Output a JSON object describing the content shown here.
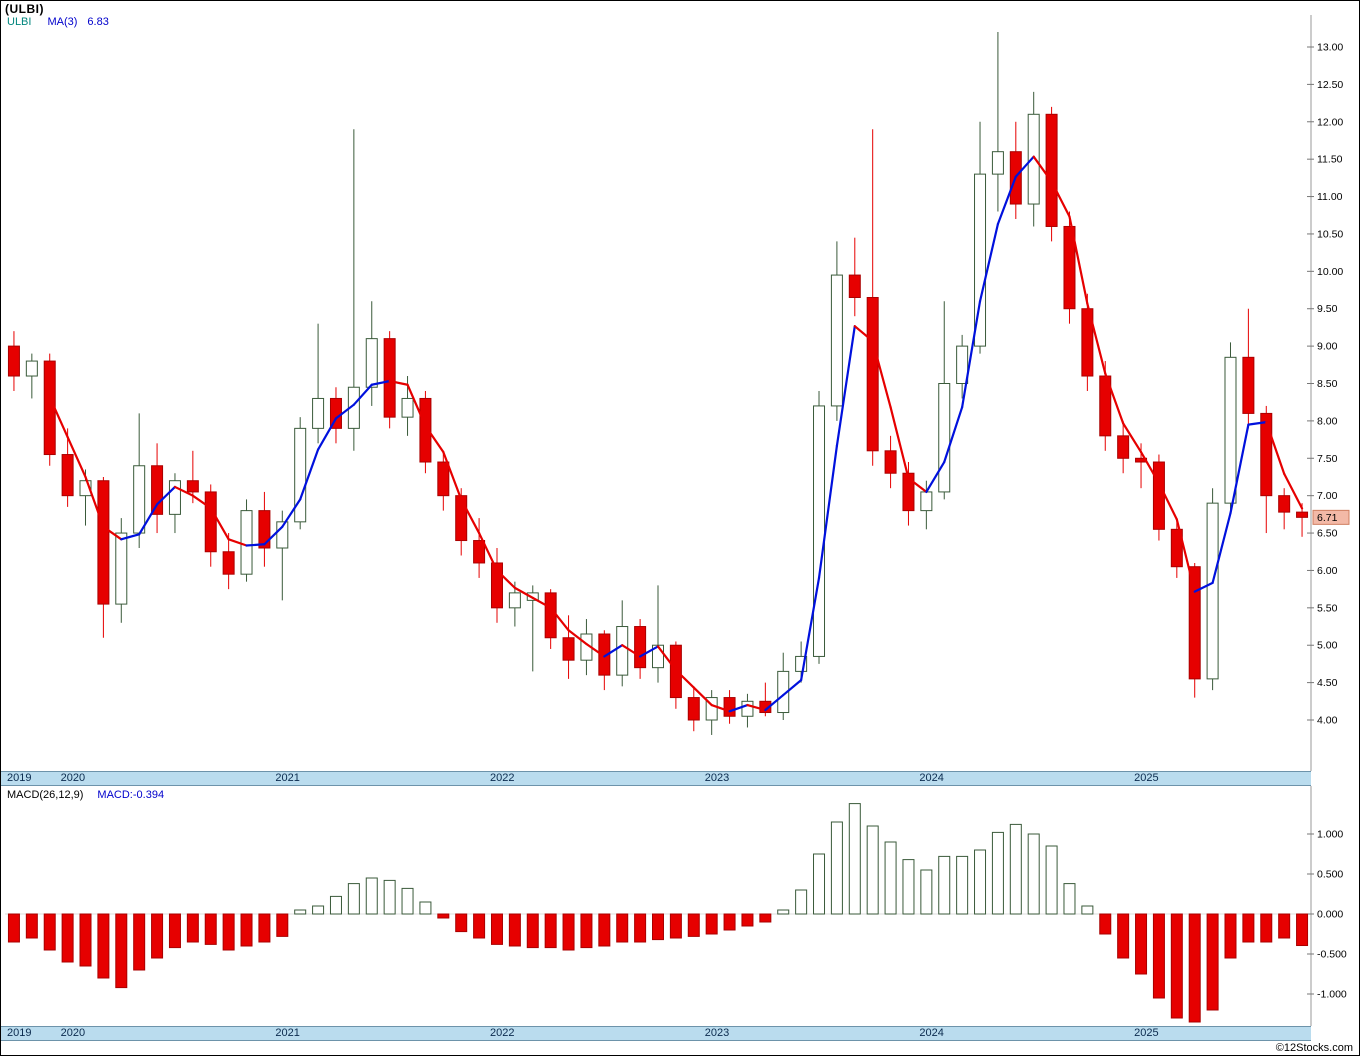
{
  "title": "(ULBI)",
  "legend": {
    "symbol": "ULBI",
    "ma_label": "MA(3)",
    "ma_value": "6.83"
  },
  "macd_legend": {
    "label": "MACD(26,12,9)",
    "value": "MACD:-0.394"
  },
  "footer": "©12Stocks.com",
  "colors": {
    "up_outline": "#3a5a3a",
    "down_fill": "#e60000",
    "down_stroke": "#aa0000",
    "ma_up": "#0011dd",
    "ma_down": "#e60000",
    "accent_teal": "#00857d",
    "accent_blue": "#0000cc",
    "band_bg": "#badcee",
    "band_text": "#0b2b4e",
    "last_tag_bg": "#f3b9a7",
    "last_tag_border": "#cf7d5f",
    "axis_text": "#000000"
  },
  "chart_data": [
    {
      "type": "candlestick",
      "title": "(ULBI)",
      "symbol": "ULBI",
      "interval": "monthly",
      "overlay": {
        "name": "MA(3)",
        "period": 3,
        "last_value": 6.83,
        "style": "blue when rising, red when falling"
      },
      "last_close_label": "6.71",
      "ylim": [
        3.75,
        13.4
      ],
      "y_ticks": [
        4.0,
        4.5,
        5.0,
        5.5,
        6.0,
        6.5,
        7.0,
        7.5,
        8.0,
        8.5,
        9.0,
        9.5,
        10.0,
        10.5,
        11.0,
        11.5,
        12.0,
        12.5,
        13.0
      ],
      "year_labels": [
        "2019",
        "2020",
        "2021",
        "2022",
        "2023",
        "2024",
        "2025"
      ],
      "x_dates": [
        "2019-10",
        "2019-11",
        "2019-12",
        "2020-01",
        "2020-02",
        "2020-03",
        "2020-04",
        "2020-05",
        "2020-06",
        "2020-07",
        "2020-08",
        "2020-09",
        "2020-10",
        "2020-11",
        "2020-12",
        "2021-01",
        "2021-02",
        "2021-03",
        "2021-04",
        "2021-05",
        "2021-06",
        "2021-07",
        "2021-08",
        "2021-09",
        "2021-10",
        "2021-11",
        "2021-12",
        "2022-01",
        "2022-02",
        "2022-03",
        "2022-04",
        "2022-05",
        "2022-06",
        "2022-07",
        "2022-08",
        "2022-09",
        "2022-10",
        "2022-11",
        "2022-12",
        "2023-01",
        "2023-02",
        "2023-03",
        "2023-04",
        "2023-05",
        "2023-06",
        "2023-07",
        "2023-08",
        "2023-09",
        "2023-10",
        "2023-11",
        "2023-12",
        "2024-01",
        "2024-02",
        "2024-03",
        "2024-04",
        "2024-05",
        "2024-06",
        "2024-07",
        "2024-08",
        "2024-09",
        "2024-10",
        "2024-11",
        "2024-12",
        "2025-01",
        "2025-02",
        "2025-03",
        "2025-04",
        "2025-05",
        "2025-06",
        "2025-07",
        "2025-08",
        "2025-09",
        "2025-10"
      ],
      "open": [
        9.0,
        8.6,
        8.8,
        7.55,
        7.0,
        7.2,
        5.55,
        6.5,
        7.4,
        6.75,
        7.2,
        7.05,
        6.25,
        5.95,
        6.8,
        6.3,
        6.65,
        7.9,
        8.3,
        7.9,
        8.45,
        9.1,
        8.05,
        8.3,
        7.45,
        7.0,
        6.4,
        6.1,
        5.5,
        5.6,
        5.7,
        5.1,
        4.8,
        5.15,
        4.6,
        5.25,
        4.7,
        5.0,
        4.3,
        4.0,
        4.3,
        4.05,
        4.25,
        4.1,
        4.65,
        4.85,
        8.2,
        9.95,
        9.65,
        7.6,
        7.3,
        6.8,
        7.05,
        8.5,
        9.0,
        11.3,
        11.6,
        10.9,
        12.1,
        10.6,
        9.5,
        8.6,
        7.8,
        7.5,
        7.45,
        6.55,
        6.05,
        4.55,
        6.9,
        8.85,
        8.1,
        7.0,
        6.78
      ],
      "high": [
        9.2,
        8.9,
        8.9,
        7.9,
        7.35,
        7.25,
        6.7,
        8.1,
        7.7,
        7.3,
        7.6,
        7.15,
        6.5,
        6.95,
        7.05,
        6.8,
        8.05,
        9.3,
        8.45,
        11.9,
        9.6,
        9.2,
        8.6,
        8.4,
        7.6,
        7.1,
        6.7,
        6.3,
        5.85,
        5.8,
        5.75,
        5.4,
        5.35,
        5.2,
        5.6,
        5.35,
        5.8,
        5.05,
        4.45,
        4.4,
        4.4,
        4.35,
        4.5,
        4.9,
        5.05,
        8.4,
        10.4,
        10.45,
        11.9,
        7.8,
        7.45,
        7.2,
        9.6,
        9.15,
        12.0,
        13.2,
        12.0,
        12.4,
        12.2,
        10.8,
        9.7,
        8.8,
        8.0,
        7.7,
        7.55,
        6.7,
        6.1,
        7.1,
        9.05,
        9.5,
        8.2,
        7.1,
        6.9
      ],
      "low": [
        8.4,
        8.3,
        7.4,
        6.85,
        6.6,
        5.1,
        5.3,
        6.3,
        6.5,
        6.5,
        6.9,
        6.05,
        5.75,
        5.85,
        6.05,
        5.6,
        6.55,
        7.7,
        7.7,
        7.6,
        8.2,
        7.9,
        7.8,
        7.3,
        6.8,
        6.2,
        5.9,
        5.3,
        5.25,
        4.65,
        4.95,
        4.55,
        4.6,
        4.4,
        4.45,
        4.55,
        4.5,
        4.15,
        3.85,
        3.8,
        3.95,
        3.9,
        4.05,
        4.0,
        4.5,
        4.75,
        8.0,
        9.4,
        7.4,
        7.1,
        6.6,
        6.55,
        6.95,
        8.3,
        8.9,
        10.8,
        10.7,
        10.6,
        10.4,
        9.3,
        8.4,
        7.6,
        7.3,
        7.1,
        6.4,
        5.9,
        4.3,
        4.4,
        6.8,
        7.9,
        6.5,
        6.55,
        6.45
      ],
      "close": [
        8.6,
        8.8,
        7.55,
        7.0,
        7.2,
        5.55,
        6.5,
        7.4,
        6.75,
        7.2,
        7.05,
        6.25,
        5.95,
        6.8,
        6.3,
        6.65,
        7.9,
        8.3,
        7.9,
        8.45,
        9.1,
        8.05,
        8.3,
        7.45,
        7.0,
        6.4,
        6.1,
        5.5,
        5.7,
        5.7,
        5.1,
        4.8,
        5.15,
        4.6,
        5.25,
        4.7,
        5.0,
        4.3,
        4.0,
        4.3,
        4.05,
        4.25,
        4.1,
        4.65,
        4.85,
        8.2,
        9.95,
        9.65,
        7.6,
        7.3,
        6.8,
        7.05,
        8.5,
        9.0,
        11.3,
        11.6,
        10.9,
        12.1,
        10.6,
        9.5,
        8.6,
        7.8,
        7.5,
        7.45,
        6.55,
        6.05,
        4.55,
        6.9,
        8.85,
        8.1,
        7.0,
        6.78,
        6.71
      ]
    },
    {
      "type": "bar",
      "name": "MACD(26,12,9) histogram",
      "last_value": -0.394,
      "ylim": [
        -1.5,
        1.5
      ],
      "y_ticks": [
        1.0,
        0.5,
        0.0,
        -0.5,
        -1.0
      ],
      "values": [
        -0.35,
        -0.3,
        -0.45,
        -0.6,
        -0.65,
        -0.8,
        -0.92,
        -0.7,
        -0.55,
        -0.42,
        -0.35,
        -0.38,
        -0.45,
        -0.4,
        -0.35,
        -0.28,
        0.05,
        0.1,
        0.22,
        0.38,
        0.45,
        0.42,
        0.32,
        0.15,
        -0.05,
        -0.22,
        -0.3,
        -0.38,
        -0.4,
        -0.42,
        -0.42,
        -0.45,
        -0.42,
        -0.4,
        -0.35,
        -0.35,
        -0.32,
        -0.3,
        -0.28,
        -0.25,
        -0.2,
        -0.15,
        -0.1,
        0.05,
        0.3,
        0.75,
        1.15,
        1.38,
        1.1,
        0.9,
        0.68,
        0.55,
        0.72,
        0.72,
        0.8,
        1.02,
        1.12,
        1.0,
        0.85,
        0.38,
        0.1,
        -0.25,
        -0.55,
        -0.75,
        -1.05,
        -1.3,
        -1.35,
        -1.2,
        -0.55,
        -0.35,
        -0.35,
        -0.3,
        -0.394
      ]
    }
  ]
}
